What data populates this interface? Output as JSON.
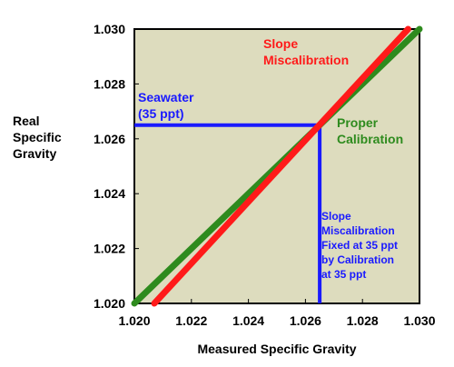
{
  "chart_data": {
    "type": "line",
    "title": "",
    "xlabel": "Measured Specific Gravity",
    "ylabel": [
      "Real",
      "Specific",
      "Gravity"
    ],
    "xlim": [
      1.02,
      1.03
    ],
    "ylim": [
      1.02,
      1.03
    ],
    "xticks": [
      "1.020",
      "1.022",
      "1.024",
      "1.026",
      "1.028",
      "1.030"
    ],
    "yticks": [
      "1.020",
      "1.022",
      "1.024",
      "1.026",
      "1.028",
      "1.030"
    ],
    "grid": false,
    "background_color": "#dddcbe",
    "series": [
      {
        "name": "Proper Calibration",
        "color": "#2e8b1e",
        "x": [
          1.02,
          1.03
        ],
        "y": [
          1.02,
          1.03
        ]
      },
      {
        "name": "Slope Miscalibration",
        "color": "#ff1a1a",
        "x": [
          1.0207,
          1.0296
        ],
        "y": [
          1.02,
          1.03
        ]
      }
    ],
    "reference": {
      "x": 1.0265,
      "y": 1.0265,
      "color": "#1a1aff"
    },
    "annotations": {
      "seawater": [
        "Seawater",
        "(35 ppt)"
      ],
      "slope_miscalibration": [
        "Slope",
        "Miscalibration"
      ],
      "proper_calibration": [
        "Proper",
        "Calibration"
      ],
      "fixed_note": [
        "Slope",
        "Miscalibration",
        "Fixed at 35 ppt",
        "by Calibration",
        "at 35 ppt"
      ]
    }
  }
}
